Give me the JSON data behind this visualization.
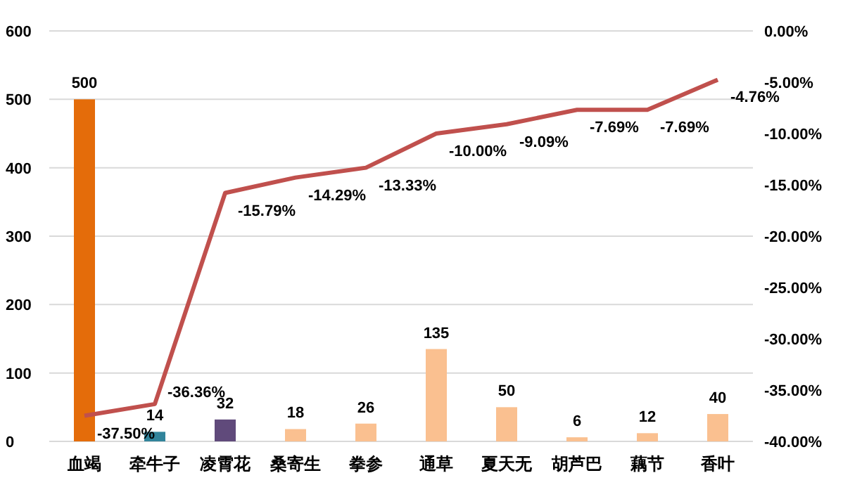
{
  "chart_data": {
    "type": "bar",
    "categories": [
      "血竭",
      "牵牛子",
      "凌霄花",
      "桑寄生",
      "拳参",
      "通草",
      "夏天无",
      "胡芦巴",
      "藕节",
      "香叶"
    ],
    "series": [
      {
        "colors": [
          "#e46c0a",
          "#31849b",
          "#604a7b",
          "#fac090",
          "#fac090",
          "#fac090",
          "#fac090",
          "#fac090",
          "#fac090",
          "#fac090"
        ],
        "values": [
          500,
          14,
          32,
          18,
          26,
          135,
          50,
          6,
          12,
          40
        ],
        "value_labels": [
          "500",
          "14",
          "32",
          "18",
          "26",
          "135",
          "50",
          "6",
          "12",
          "40"
        ]
      },
      {
        "type": "line",
        "axis": "y2",
        "color": "#c0504d",
        "values": [
          -37.5,
          -36.36,
          -15.79,
          -14.29,
          -13.33,
          -10.0,
          -9.09,
          -7.69,
          -7.69,
          -4.76
        ],
        "value_labels": [
          "-37.50%",
          "-36.36%",
          "-15.79%",
          "-14.29%",
          "-13.33%",
          "-10.00%",
          "-9.09%",
          "-7.69%",
          "-7.69%",
          "-4.76%"
        ]
      }
    ],
    "ylim": [
      0,
      600
    ],
    "yticks": [
      0,
      100,
      200,
      300,
      400,
      500,
      600
    ],
    "y2lim": [
      -40,
      0
    ],
    "y2ticks": [
      {
        "value": -40,
        "label": "-40.00%"
      },
      {
        "value": -35,
        "label": "-35.00%"
      },
      {
        "value": -30,
        "label": "-30.00%"
      },
      {
        "value": -25,
        "label": "-25.00%"
      },
      {
        "value": -20,
        "label": "-20.00%"
      },
      {
        "value": -15,
        "label": "-15.00%"
      },
      {
        "value": -10,
        "label": "-10.00%"
      },
      {
        "value": -5,
        "label": "-5.00%"
      },
      {
        "value": 0,
        "label": "0.00%"
      }
    ],
    "grid": "y",
    "marker": "none"
  }
}
